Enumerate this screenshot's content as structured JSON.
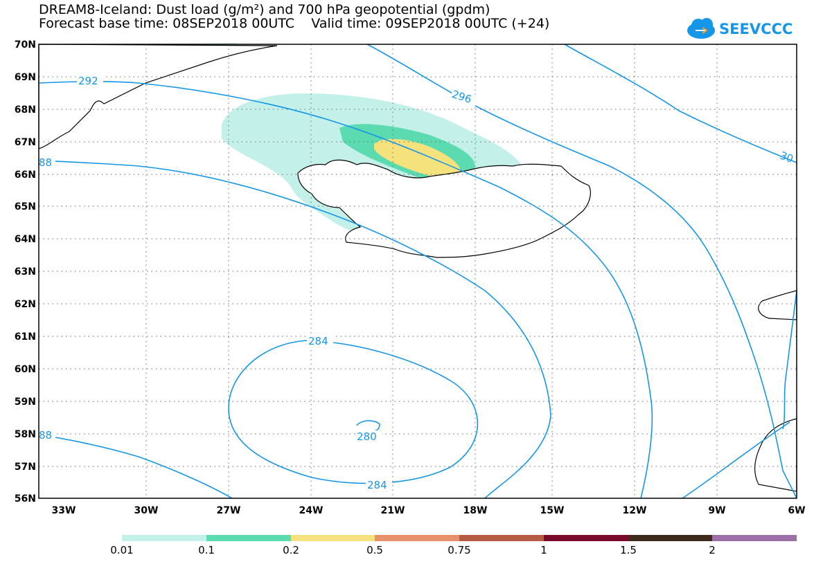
{
  "title": {
    "line1": "DREAM8-Iceland: Dust load (g/m²) and 700 hPa geopotential (gpdm)",
    "line2": "Forecast base time: 08SEP2018 00UTC    Valid time: 09SEP2018 00UTC (+24)"
  },
  "logo": {
    "text": "SEEVCCC",
    "icon": "cloud-logo-icon",
    "color": "#1596e8"
  },
  "lat_labels": [
    "70N",
    "69N",
    "68N",
    "67N",
    "66N",
    "65N",
    "64N",
    "63N",
    "62N",
    "61N",
    "60N",
    "59N",
    "58N",
    "57N",
    "56N"
  ],
  "lon_labels": [
    "33W",
    "30W",
    "27W",
    "24W",
    "21W",
    "18W",
    "15W",
    "12W",
    "9W",
    "6W"
  ],
  "contour_labels": {
    "c292": "292",
    "c296": "296",
    "c300": "30",
    "c288a": "88",
    "c288b": "88",
    "c284a": "284",
    "c284b": "284",
    "c280": "280"
  },
  "colorbar": {
    "colors": [
      "#c4f0ea",
      "#5ddbb0",
      "#f5e27d",
      "#e8906a",
      "#b45a45",
      "#9b3a2f",
      "#7a0a2c",
      "#3e2a1c",
      "#9c6fa8"
    ],
    "labels": [
      "0.01",
      "0.1",
      "0.2",
      "0.5",
      "0.75",
      "1",
      "1.5",
      "2"
    ]
  },
  "map_colors": {
    "contour": "#1596e8",
    "dust_low": "#c4f0ea",
    "dust_mid": "#5ddbb0",
    "dust_high": "#f5e27d"
  }
}
